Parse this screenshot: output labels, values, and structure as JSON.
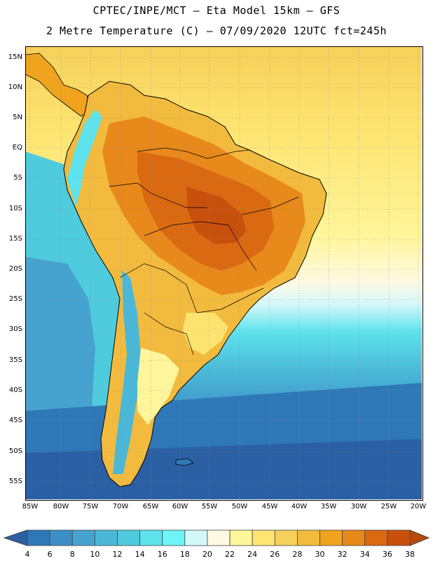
{
  "header": {
    "title_line1": "CPTEC/INPE/MCT –  Eta Model 15km – GFS",
    "title_line2": "2 Metre Temperature (C) – 07/09/2020 12UTC fct=245h"
  },
  "axes": {
    "lat_labels": [
      "15N",
      "10N",
      "5N",
      "EQ",
      "5S",
      "10S",
      "15S",
      "20S",
      "25S",
      "30S",
      "35S",
      "40S",
      "45S",
      "50S",
      "55S"
    ],
    "lon_labels": [
      "85W",
      "80W",
      "75W",
      "70W",
      "65W",
      "60W",
      "55W",
      "50W",
      "45W",
      "40W",
      "35W",
      "30W",
      "25W",
      "20W"
    ]
  },
  "colorbar": {
    "labels": [
      "4",
      "6",
      "8",
      "10",
      "12",
      "14",
      "16",
      "18",
      "20",
      "22",
      "24",
      "26",
      "28",
      "30",
      "32",
      "34",
      "36",
      "38"
    ],
    "colors": [
      "#2b5fa4",
      "#2f78b8",
      "#3c8fc6",
      "#46a3cf",
      "#4bb8d8",
      "#4fcbde",
      "#5ee3ec",
      "#6cf4f7",
      "#d4f7fa",
      "#fff9e3",
      "#fff59a",
      "#fde470",
      "#f6d05a",
      "#f2bb3e",
      "#f0a41e",
      "#e8891b",
      "#da6a12",
      "#c8500d",
      "#b84a0c"
    ]
  },
  "legend_colors": {
    "ocean_cold": "#2b5fa4",
    "ocean_cool": "#46a3cf",
    "ocean_mild": "#5ee3ec",
    "ocean_warm": "#fde470",
    "land_hot": "#da6a12",
    "land_warm": "#f0a41e",
    "border": "#000000"
  }
}
